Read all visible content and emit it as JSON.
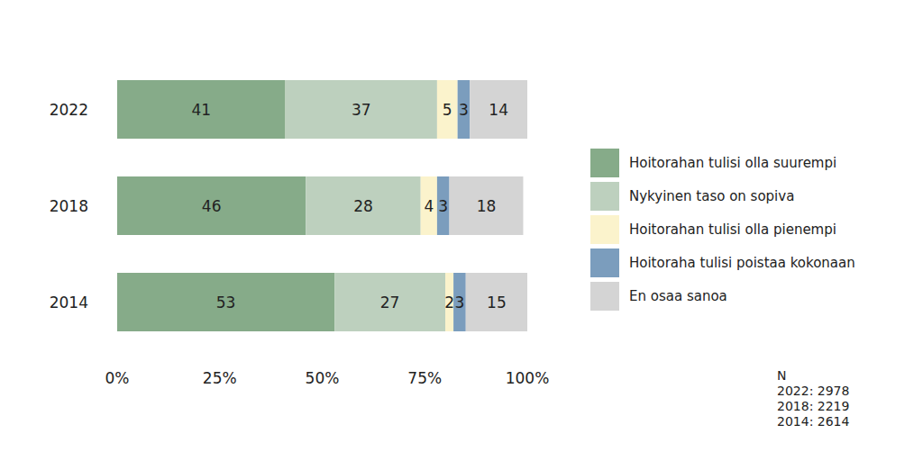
{
  "chart_data": {
    "type": "bar",
    "orientation": "horizontal",
    "stacked": true,
    "data_labels": true,
    "grid": false,
    "legend": "right",
    "categories": [
      "2022",
      "2018",
      "2014"
    ],
    "series": [
      {
        "name": "Hoitorahan tulisi olla suurempi",
        "color": "#86ab89",
        "values": [
          41,
          46,
          53
        ]
      },
      {
        "name": "Nykyinen taso on sopiva",
        "color": "#bdd0be",
        "values": [
          37,
          28,
          27
        ]
      },
      {
        "name": "Hoitorahan tulisi olla pienempi",
        "color": "#fbf3cc",
        "values": [
          5,
          4,
          2
        ]
      },
      {
        "name": "Hoitoraha tulisi poistaa kokonaan",
        "color": "#7b9dbd",
        "values": [
          3,
          3,
          3
        ]
      },
      {
        "name": "En osaa sanoa",
        "color": "#d4d4d4",
        "values": [
          14,
          18,
          15
        ]
      }
    ],
    "xlim": [
      0,
      100
    ],
    "xticks": [
      {
        "value": 0,
        "label": "0%"
      },
      {
        "value": 25,
        "label": "25%"
      },
      {
        "value": 50,
        "label": "50%"
      },
      {
        "value": 75,
        "label": "75%"
      },
      {
        "value": 100,
        "label": "100%"
      }
    ],
    "annotations": [
      "N",
      "2022: 2978",
      "2018: 2219",
      "2014: 2614"
    ]
  }
}
